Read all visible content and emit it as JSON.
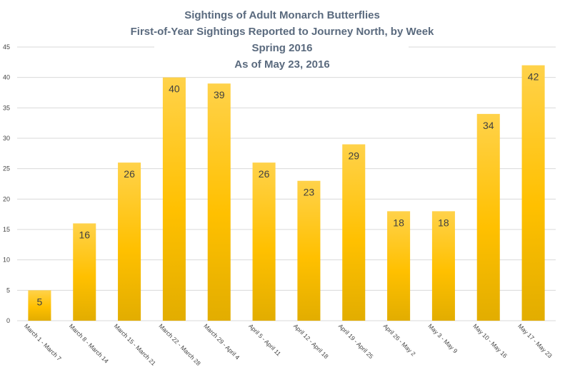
{
  "chart_data": {
    "type": "bar",
    "title_lines": [
      "Sightings of Adult Monarch Butterflies",
      "First-of-Year Sightings Reported to Journey North, by Week",
      "Spring 2016",
      "As of May 23, 2016"
    ],
    "categories": [
      "March 1 - March 7",
      "March 8 - March 14",
      "March 15 - March 21",
      "March 22 - March 28",
      "March 29 - April 4",
      "April 5 - April 11",
      "April 12 - April 18",
      "April 19 - April 25",
      "April 26 - May 2",
      "May 3 - May 9",
      "May 10 - May 16",
      "May 17 - May 23"
    ],
    "values": [
      5,
      16,
      26,
      40,
      39,
      26,
      23,
      29,
      18,
      18,
      34,
      42
    ],
    "ylim": [
      0,
      45
    ],
    "yticks": [
      0,
      5,
      10,
      15,
      20,
      25,
      30,
      35,
      40,
      45
    ],
    "grid": true,
    "legend": "none",
    "colors": {
      "bar_top": "#ffd24a",
      "bar_mid": "#ffc000",
      "bar_bottom": "#e2ad00",
      "grid": "#d9d9d9",
      "title": "#5a6a7e"
    }
  }
}
